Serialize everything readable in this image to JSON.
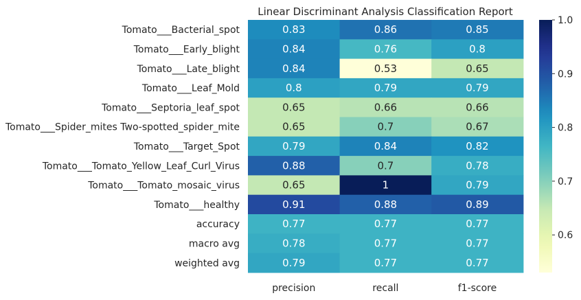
{
  "chart_data": {
    "type": "heatmap",
    "title": "Linear Discriminant Analysis Classification Report",
    "xlabel": "",
    "ylabel": "",
    "columns": [
      "precision",
      "recall",
      "f1-score"
    ],
    "rows": [
      "Tomato___Bacterial_spot",
      "Tomato___Early_blight",
      "Tomato___Late_blight",
      "Tomato___Leaf_Mold",
      "Tomato___Septoria_leaf_spot",
      "Tomato___Spider_mites Two-spotted_spider_mite",
      "Tomato___Target_Spot",
      "Tomato___Tomato_Yellow_Leaf_Curl_Virus",
      "Tomato___Tomato_mosaic_virus",
      "Tomato___healthy",
      "accuracy",
      "macro avg",
      "weighted avg"
    ],
    "values": [
      [
        0.83,
        0.86,
        0.85
      ],
      [
        0.84,
        0.76,
        0.8
      ],
      [
        0.84,
        0.53,
        0.65
      ],
      [
        0.8,
        0.79,
        0.79
      ],
      [
        0.65,
        0.66,
        0.66
      ],
      [
        0.65,
        0.7,
        0.67
      ],
      [
        0.79,
        0.84,
        0.82
      ],
      [
        0.88,
        0.7,
        0.78
      ],
      [
        0.65,
        1,
        0.79
      ],
      [
        0.91,
        0.88,
        0.89
      ],
      [
        0.77,
        0.77,
        0.77
      ],
      [
        0.78,
        0.77,
        0.77
      ],
      [
        0.79,
        0.77,
        0.77
      ]
    ],
    "colormap": "YlGnBu",
    "vmin": 0.53,
    "vmax": 1.0,
    "colorbar_ticks": [
      0.6,
      0.7,
      0.8,
      0.9,
      1.0
    ],
    "colorbar_tick_labels": [
      "0.6",
      "0.7",
      "0.8",
      "0.9",
      "1.0"
    ],
    "grid": false,
    "legend": "colorbar-right"
  }
}
